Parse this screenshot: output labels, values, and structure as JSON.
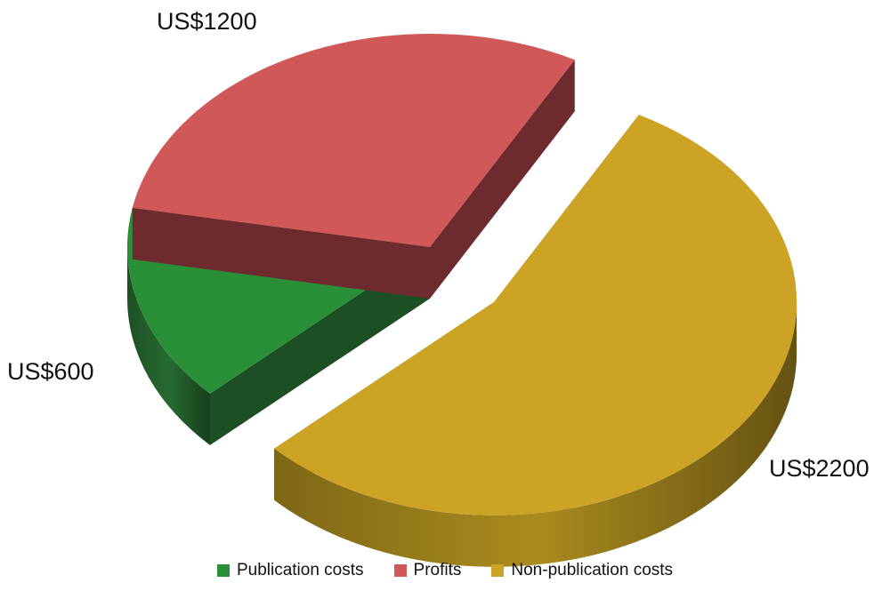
{
  "chart_data": {
    "type": "pie",
    "style": "3d-exploded",
    "categories": [
      "Publication costs",
      "Profits",
      "Non-publication costs"
    ],
    "values": [
      600,
      1200,
      2200
    ],
    "data_labels": [
      "US$600",
      "US$1200",
      "US$2200"
    ],
    "exploded": [
      "Non-publication costs"
    ],
    "colors": [
      "#2a9038",
      "#d05858",
      "#cca325"
    ],
    "side_colors": [
      "#1d4f24",
      "#6d2b2e",
      "#7e6716"
    ],
    "legend": {
      "placement": "bottom",
      "items": [
        "Publication costs",
        "Profits",
        "Non-publication costs"
      ]
    },
    "title": "",
    "grid": false
  }
}
